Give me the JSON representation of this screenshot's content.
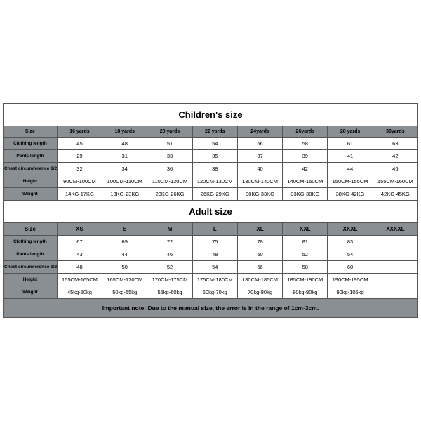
{
  "children": {
    "title": "Children's size",
    "headers": [
      "Size",
      "16 yards",
      "18 yards",
      "20 yards",
      "22 yards",
      "24yards",
      "26yards",
      "28 yards",
      "30yards"
    ],
    "rows": [
      {
        "label": "Clothing length",
        "values": [
          "45",
          "48",
          "51",
          "54",
          "56",
          "58",
          "61",
          "63"
        ]
      },
      {
        "label": "Pants length",
        "values": [
          "29",
          "31",
          "33",
          "35",
          "37",
          "39",
          "41",
          "42"
        ]
      },
      {
        "label": "Chest circumference 1/2",
        "values": [
          "32",
          "34",
          "36",
          "38",
          "40",
          "42",
          "44",
          "46"
        ]
      },
      {
        "label": "Height",
        "values": [
          "90CM-100CM",
          "100CM-110CM",
          "110CM-120CM",
          "120CM-130CM",
          "130CM-140CM",
          "140CM-150CM",
          "150CM-155CM",
          "155CM-160CM"
        ]
      },
      {
        "label": "Weight",
        "values": [
          "14KG-17KG",
          "18KG-23KG",
          "23KG-26KG",
          "26KG-29KG",
          "30KG-33KG",
          "33KG-38KG",
          "38KG-42KG",
          "42KG-45KG"
        ]
      }
    ]
  },
  "adult": {
    "title": "Adult size",
    "headers": [
      "Size",
      "XS",
      "S",
      "M",
      "L",
      "XL",
      "XXL",
      "XXXL",
      "XXXXL"
    ],
    "rows": [
      {
        "label": "Clothing length",
        "values": [
          "67",
          "69",
          "72",
          "75",
          "78",
          "81",
          "83",
          ""
        ]
      },
      {
        "label": "Pants length",
        "values": [
          "43",
          "44",
          "46",
          "48",
          "50",
          "52",
          "54",
          ""
        ]
      },
      {
        "label": "Chest circumference 1/2",
        "values": [
          "48",
          "50",
          "52",
          "54",
          "56",
          "58",
          "60",
          ""
        ]
      },
      {
        "label": "Height",
        "values": [
          "155CM-165CM",
          "165CM-170CM",
          "170CM-175CM",
          "175CM-180CM",
          "180CM-185CM",
          "185CM-190CM",
          "190CM-195CM",
          ""
        ]
      },
      {
        "label": "Weight",
        "values": [
          "45kg-50kg",
          "50kg-55kg",
          "55kg-60kg",
          "60kg-70kg",
          "70kg-80kg",
          "80kg-90kg",
          "90kg-105kg",
          ""
        ]
      }
    ]
  },
  "note": "Important note: Due to the manual size, the error is in the range of 1cm-3cm.",
  "style": {
    "header_bg": "#8a8f94",
    "border_color": "#555555",
    "text_color": "#000000",
    "bg": "#ffffff"
  }
}
